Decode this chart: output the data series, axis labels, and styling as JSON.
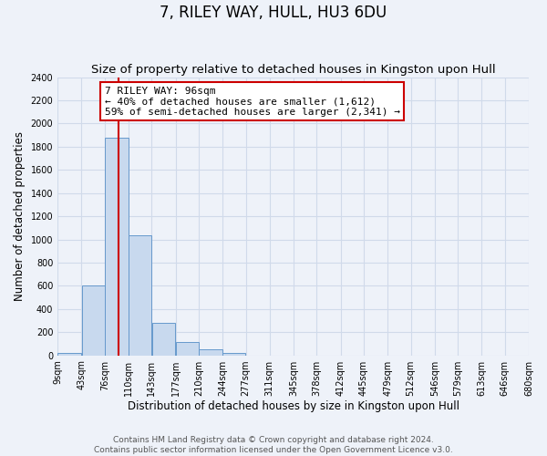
{
  "title": "7, RILEY WAY, HULL, HU3 6DU",
  "subtitle": "Size of property relative to detached houses in Kingston upon Hull",
  "xlabel": "Distribution of detached houses by size in Kingston upon Hull",
  "ylabel": "Number of detached properties",
  "bar_color": "#c8d9ee",
  "bar_edge_color": "#6699cc",
  "vline_color": "#cc0000",
  "vline_x": 96,
  "annotation_line1": "7 RILEY WAY: 96sqm",
  "annotation_line2": "← 40% of detached houses are smaller (1,612)",
  "annotation_line3": "59% of semi-detached houses are larger (2,341) →",
  "annotation_box_edgecolor": "#cc0000",
  "annotation_box_facecolor": "#ffffff",
  "bin_edges": [
    9,
    43,
    76,
    110,
    143,
    177,
    210,
    244,
    277,
    311,
    345,
    378,
    412,
    445,
    479,
    512,
    546,
    579,
    613,
    646,
    680
  ],
  "bin_values": [
    20,
    600,
    1880,
    1035,
    280,
    115,
    48,
    20,
    0,
    0,
    0,
    0,
    0,
    0,
    0,
    0,
    0,
    0,
    0,
    0
  ],
  "ylim": [
    0,
    2400
  ],
  "yticks": [
    0,
    200,
    400,
    600,
    800,
    1000,
    1200,
    1400,
    1600,
    1800,
    2000,
    2200,
    2400
  ],
  "xtick_labels": [
    "9sqm",
    "43sqm",
    "76sqm",
    "110sqm",
    "143sqm",
    "177sqm",
    "210sqm",
    "244sqm",
    "277sqm",
    "311sqm",
    "345sqm",
    "378sqm",
    "412sqm",
    "445sqm",
    "479sqm",
    "512sqm",
    "546sqm",
    "579sqm",
    "613sqm",
    "646sqm",
    "680sqm"
  ],
  "footer_line1": "Contains HM Land Registry data © Crown copyright and database right 2024.",
  "footer_line2": "Contains public sector information licensed under the Open Government Licence v3.0.",
  "background_color": "#eef2f9",
  "grid_color": "#d0daea",
  "title_fontsize": 12,
  "subtitle_fontsize": 9.5,
  "axis_label_fontsize": 8.5,
  "tick_fontsize": 7,
  "annotation_fontsize": 8,
  "footer_fontsize": 6.5
}
